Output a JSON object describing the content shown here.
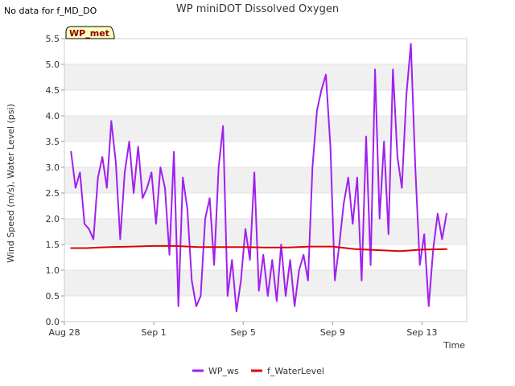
{
  "no_data_note": "No data for f_MD_DO",
  "chart_data": {
    "type": "line",
    "title": "WP miniDOT Dissolved Oxygen",
    "badge": "WP_met",
    "xlabel": "Time",
    "ylabel": "Wind Speed (m/s), Water Level (psi)",
    "ylim": [
      0,
      5.5
    ],
    "xlim": [
      0,
      18
    ],
    "yticks": [
      0.0,
      0.5,
      1.0,
      1.5,
      2.0,
      2.5,
      3.0,
      3.5,
      4.0,
      4.5,
      5.0,
      5.5
    ],
    "ytick_labels": [
      "0.0",
      "0.5",
      "1.0",
      "1.5",
      "2.0",
      "2.5",
      "3.0",
      "3.5",
      "4.0",
      "4.5",
      "5.0",
      "5.5"
    ],
    "xticks": [
      0,
      4,
      8,
      12,
      16
    ],
    "xtick_labels": [
      "Aug 28",
      "Sep 1",
      "Sep 5",
      "Sep 9",
      "Sep 13"
    ],
    "x_unit": "days since Aug 28",
    "grid": "horizontal bands",
    "legend_position": "bottom",
    "series": [
      {
        "name": "WP_ws",
        "color": "#a020f0",
        "x": [
          0.3,
          0.5,
          0.7,
          0.9,
          1.1,
          1.3,
          1.5,
          1.7,
          1.9,
          2.1,
          2.3,
          2.5,
          2.7,
          2.9,
          3.1,
          3.3,
          3.5,
          3.7,
          3.9,
          4.1,
          4.3,
          4.5,
          4.7,
          4.9,
          5.1,
          5.3,
          5.5,
          5.7,
          5.9,
          6.1,
          6.3,
          6.5,
          6.7,
          6.9,
          7.1,
          7.3,
          7.5,
          7.7,
          7.9,
          8.1,
          8.3,
          8.5,
          8.7,
          8.9,
          9.1,
          9.3,
          9.5,
          9.7,
          9.9,
          10.1,
          10.3,
          10.5,
          10.7,
          10.9,
          11.1,
          11.3,
          11.5,
          11.7,
          11.9,
          12.1,
          12.3,
          12.5,
          12.7,
          12.9,
          13.1,
          13.3,
          13.5,
          13.7,
          13.9,
          14.1,
          14.3,
          14.5,
          14.7,
          14.9,
          15.1,
          15.3,
          15.5,
          15.7,
          15.9,
          16.1,
          16.3,
          16.5,
          16.7,
          16.9,
          17.1
        ],
        "y": [
          3.3,
          2.6,
          2.9,
          1.9,
          1.8,
          1.6,
          2.8,
          3.2,
          2.6,
          3.9,
          3.1,
          1.6,
          2.9,
          3.5,
          2.5,
          3.4,
          2.4,
          2.6,
          2.9,
          1.9,
          3.0,
          2.6,
          1.3,
          3.3,
          0.3,
          2.8,
          2.2,
          0.8,
          0.3,
          0.5,
          2.0,
          2.4,
          1.1,
          3.0,
          3.8,
          0.5,
          1.2,
          0.2,
          0.8,
          1.8,
          1.2,
          2.9,
          0.6,
          1.3,
          0.5,
          1.2,
          0.4,
          1.5,
          0.5,
          1.2,
          0.3,
          1.0,
          1.3,
          0.8,
          3.0,
          4.1,
          4.5,
          4.8,
          3.4,
          0.8,
          1.5,
          2.3,
          2.8,
          1.9,
          2.8,
          0.8,
          3.6,
          1.1,
          4.9,
          2.0,
          3.5,
          1.7,
          4.9,
          3.2,
          2.6,
          4.4,
          5.4,
          3.0,
          1.1,
          1.7,
          0.3,
          1.4,
          2.1,
          1.6,
          2.1
        ]
      },
      {
        "name": "f_WaterLevel",
        "color": "#dd0000",
        "x": [
          0.3,
          1.0,
          2.0,
          3.0,
          4.0,
          5.0,
          6.0,
          7.0,
          8.0,
          9.0,
          10.0,
          11.0,
          12.0,
          13.0,
          14.0,
          15.0,
          16.0,
          17.1
        ],
        "y": [
          1.43,
          1.43,
          1.45,
          1.46,
          1.47,
          1.47,
          1.45,
          1.45,
          1.45,
          1.44,
          1.44,
          1.46,
          1.46,
          1.41,
          1.39,
          1.37,
          1.4,
          1.41
        ]
      }
    ]
  }
}
